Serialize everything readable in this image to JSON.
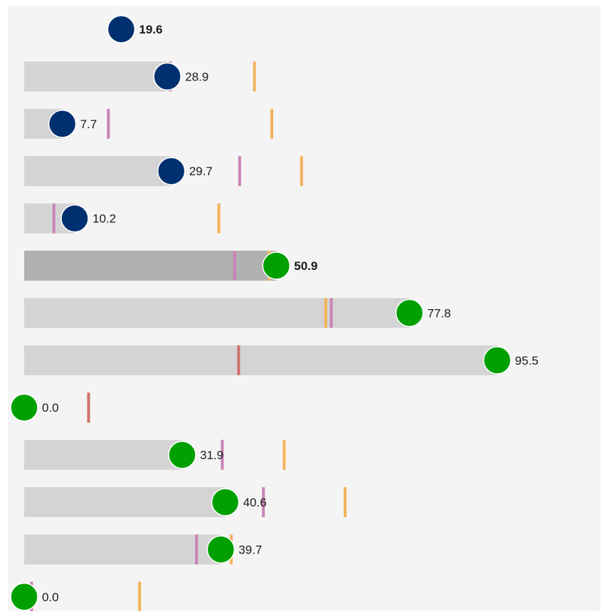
{
  "colors": {
    "background": "#f4f4f4",
    "bar": "#d4d4d4",
    "bar_highlight": "#b0b0b0",
    "dot_blue": "#003070",
    "dot_green": "#00a000",
    "marker_purple": "#c983b6",
    "marker_orange": "#f5b25a",
    "marker_red": "#d0706a"
  },
  "chart_data": {
    "type": "bar",
    "orientation": "horizontal",
    "xlim": [
      0,
      100
    ],
    "rows": [
      {
        "value": 19.6,
        "label": "19.6",
        "dot_color": "blue",
        "bar": false,
        "highlight": false,
        "bold": true,
        "markers": []
      },
      {
        "value": 28.9,
        "label": "28.9",
        "dot_color": "blue",
        "bar": true,
        "highlight": false,
        "bold": false,
        "markers": [
          {
            "type": "purple",
            "value": 29.5
          },
          {
            "type": "orange",
            "value": 46.5
          }
        ]
      },
      {
        "value": 7.7,
        "label": "7.7",
        "dot_color": "blue",
        "bar": true,
        "highlight": false,
        "bold": false,
        "markers": [
          {
            "type": "purple",
            "value": 17.0
          },
          {
            "type": "orange",
            "value": 50.0
          }
        ]
      },
      {
        "value": 29.7,
        "label": "29.7",
        "dot_color": "blue",
        "bar": true,
        "highlight": false,
        "bold": false,
        "markers": [
          {
            "type": "purple",
            "value": 43.5
          },
          {
            "type": "orange",
            "value": 56.0
          }
        ]
      },
      {
        "value": 10.2,
        "label": "10.2",
        "dot_color": "blue",
        "bar": true,
        "highlight": false,
        "bold": false,
        "markers": [
          {
            "type": "purple",
            "value": 6.0
          },
          {
            "type": "orange",
            "value": 39.3
          }
        ]
      },
      {
        "value": 50.9,
        "label": "50.9",
        "dot_color": "green",
        "bar": true,
        "highlight": true,
        "bold": true,
        "markers": [
          {
            "type": "purple",
            "value": 42.5
          },
          {
            "type": "orange",
            "value": 49.5
          }
        ]
      },
      {
        "value": 77.8,
        "label": "77.8",
        "dot_color": "green",
        "bar": true,
        "highlight": false,
        "bold": false,
        "markers": [
          {
            "type": "orange",
            "value": 60.9
          },
          {
            "type": "purple",
            "value": 62.0
          }
        ]
      },
      {
        "value": 95.5,
        "label": "95.5",
        "dot_color": "green",
        "bar": true,
        "highlight": false,
        "bold": false,
        "markers": [
          {
            "type": "red",
            "value": 43.3
          }
        ]
      },
      {
        "value": 0.0,
        "label": "0.0",
        "dot_color": "green",
        "bar": false,
        "highlight": false,
        "bold": false,
        "markers": [
          {
            "type": "red",
            "value": 13.0
          }
        ]
      },
      {
        "value": 31.9,
        "label": "31.9",
        "dot_color": "green",
        "bar": true,
        "highlight": false,
        "bold": false,
        "markers": [
          {
            "type": "purple",
            "value": 40.0
          },
          {
            "type": "orange",
            "value": 52.5
          }
        ]
      },
      {
        "value": 40.6,
        "label": "40.6",
        "dot_color": "green",
        "bar": true,
        "highlight": false,
        "bold": false,
        "markers": [
          {
            "type": "purple",
            "value": 48.3
          },
          {
            "type": "orange",
            "value": 64.8
          }
        ]
      },
      {
        "value": 39.7,
        "label": "39.7",
        "dot_color": "green",
        "bar": true,
        "highlight": false,
        "bold": false,
        "markers": [
          {
            "type": "purple",
            "value": 34.8
          },
          {
            "type": "orange",
            "value": 41.8
          }
        ]
      },
      {
        "value": 0.0,
        "label": "0.0",
        "dot_color": "green",
        "bar": false,
        "highlight": false,
        "bold": false,
        "markers": [
          {
            "type": "purple",
            "value": 1.5
          },
          {
            "type": "orange",
            "value": 23.3
          }
        ]
      }
    ]
  }
}
